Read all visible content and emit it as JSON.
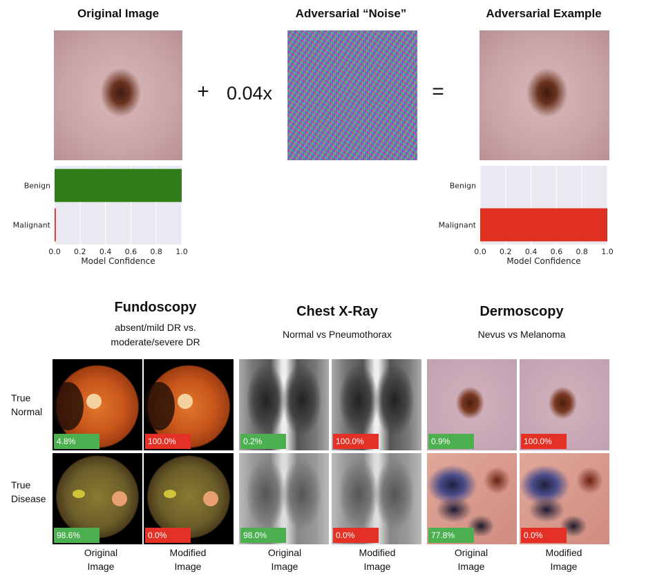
{
  "top": {
    "original_title": "Original Image",
    "noise_title": "Adversarial “Noise”",
    "adversarial_title": "Adversarial Example",
    "plus": "+",
    "multiplier": "0.04x",
    "equals": "="
  },
  "chart_data": [
    {
      "type": "bar",
      "orientation": "horizontal",
      "categories": [
        "Benign",
        "Malignant"
      ],
      "values": [
        1.0,
        0.01
      ],
      "xlabel": "Model Confidence",
      "xlim": [
        0.0,
        1.0
      ],
      "xticks": [
        "0.0",
        "0.2",
        "0.4",
        "0.6",
        "0.8",
        "1.0"
      ],
      "grid": true,
      "colors": [
        "#2e7d18",
        "#e03020"
      ]
    },
    {
      "type": "bar",
      "orientation": "horizontal",
      "categories": [
        "Benign",
        "Malignant"
      ],
      "values": [
        0.0,
        1.0
      ],
      "xlabel": "Model Confidence",
      "xlim": [
        0.0,
        1.0
      ],
      "xticks": [
        "0.0",
        "0.2",
        "0.4",
        "0.6",
        "0.8",
        "1.0"
      ],
      "grid": true,
      "colors": [
        "#2e7d18",
        "#e03020"
      ]
    }
  ],
  "sections": [
    {
      "title": "Fundoscopy",
      "subtitle_line1": "absent/mild DR vs.",
      "subtitle_line2": "moderate/severe DR"
    },
    {
      "title": "Chest X-Ray",
      "subtitle_line1": "Normal vs Pneumothorax",
      "subtitle_line2": ""
    },
    {
      "title": "Dermoscopy",
      "subtitle_line1": "Nevus vs Melanoma",
      "subtitle_line2": ""
    }
  ],
  "rows": [
    {
      "label_line1": "True",
      "label_line2": "Normal"
    },
    {
      "label_line1": "True",
      "label_line2": "Disease"
    }
  ],
  "grid_values": {
    "normal": [
      "4.8%",
      "100.0%",
      "0.2%",
      "100.0%",
      "0.9%",
      "100.0%"
    ],
    "disease": [
      "98.6%",
      "0.0%",
      "98.0%",
      "0.0%",
      "77.8%",
      "0.0%"
    ]
  },
  "colors": {
    "green": "#4caf50",
    "red": "#e53125"
  },
  "captions": {
    "original_line1": "Original",
    "original_line2": "Image",
    "modified_line1": "Modified",
    "modified_line2": "Image"
  }
}
